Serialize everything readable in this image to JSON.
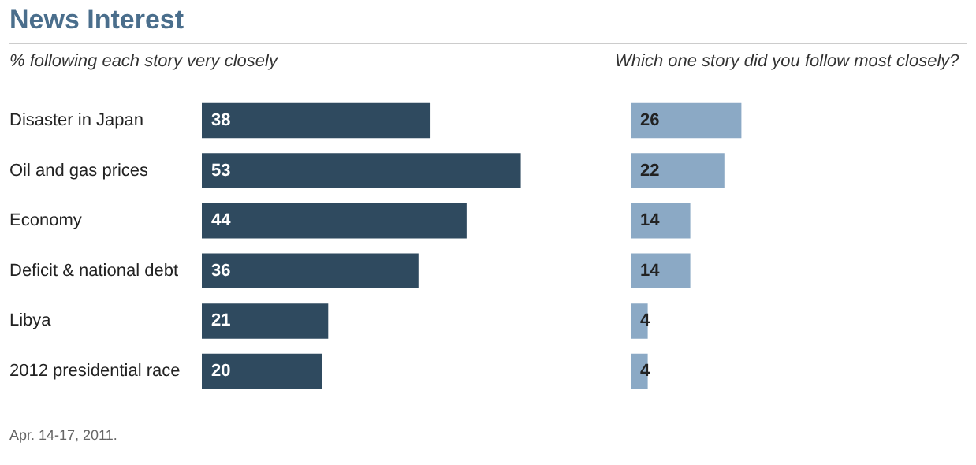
{
  "chart_data": [
    {
      "type": "bar",
      "orientation": "horizontal",
      "title": "News Interest",
      "subtitle": "% following each story very closely",
      "categories": [
        "Disaster in Japan",
        "Oil and gas prices",
        "Economy",
        "Deficit & national debt",
        "Libya",
        "2012 presidential race"
      ],
      "values": [
        38,
        53,
        44,
        36,
        21,
        20
      ],
      "color": "#2f4a5f",
      "data_labels": true,
      "annotations": [
        "Apr. 14-17, 2011."
      ]
    },
    {
      "type": "bar",
      "orientation": "horizontal",
      "subtitle": "Which one story did you follow most closely?",
      "categories": [
        null,
        null,
        null,
        null,
        null,
        null
      ],
      "values": [
        26,
        22,
        14,
        14,
        4,
        4
      ],
      "color": "#8ba9c5",
      "data_labels": true
    }
  ]
}
